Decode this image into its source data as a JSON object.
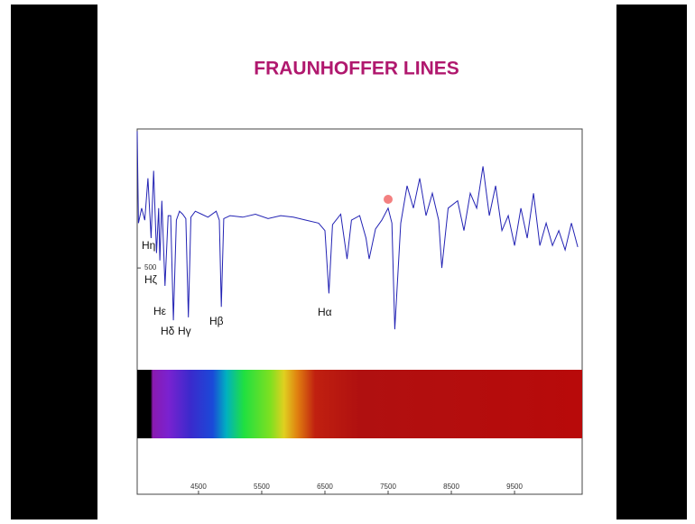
{
  "chart_data": {
    "type": "line",
    "title": "FRAUNHOFFER LINES",
    "x": [
      3530,
      3550,
      3600,
      3650,
      3700,
      3750,
      3790,
      3835,
      3870,
      3889,
      3920,
      3970,
      4020,
      4060,
      4102,
      4150,
      4200,
      4250,
      4300,
      4340,
      4380,
      4450,
      4550,
      4650,
      4780,
      4830,
      4861,
      4900,
      5000,
      5200,
      5400,
      5600,
      5800,
      6000,
      6200,
      6400,
      6500,
      6563,
      6620,
      6750,
      6850,
      6920,
      7050,
      7150,
      7200,
      7300,
      7400,
      7500,
      7560,
      7605,
      7700,
      7800,
      7900,
      8000,
      8100,
      8200,
      8300,
      8350,
      8450,
      8600,
      8700,
      8800,
      8900,
      9000,
      9100,
      9200,
      9300,
      9400,
      9500,
      9600,
      9700,
      9800,
      9900,
      10000,
      10100,
      10200,
      10300,
      10400,
      10500
    ],
    "series": [
      {
        "color": "#2323b4",
        "values": [
          1415,
          800,
          900,
          820,
          1100,
          700,
          1150,
          600,
          900,
          550,
          950,
          380,
          850,
          850,
          150,
          820,
          880,
          860,
          830,
          170,
          840,
          880,
          860,
          840,
          880,
          820,
          240,
          830,
          850,
          840,
          860,
          830,
          850,
          840,
          820,
          800,
          750,
          330,
          790,
          860,
          560,
          820,
          850,
          700,
          560,
          760,
          820,
          900,
          800,
          90,
          800,
          1050,
          900,
          1100,
          850,
          1000,
          820,
          500,
          900,
          950,
          750,
          1000,
          900,
          1180,
          850,
          1050,
          750,
          850,
          650,
          900,
          700,
          1000,
          650,
          800,
          650,
          750,
          620,
          800,
          640
        ]
      }
    ],
    "xlim": [
      3530,
      10570
    ],
    "xticks": [
      4500,
      5500,
      6500,
      7500,
      8500,
      9500
    ],
    "ylim": [
      0,
      1430
    ],
    "yticks": [
      500
    ],
    "annotations": [
      "Hη",
      "Hζ",
      "Hε",
      "Hδ",
      "Hγ",
      "Hβ",
      "Hα"
    ]
  }
}
